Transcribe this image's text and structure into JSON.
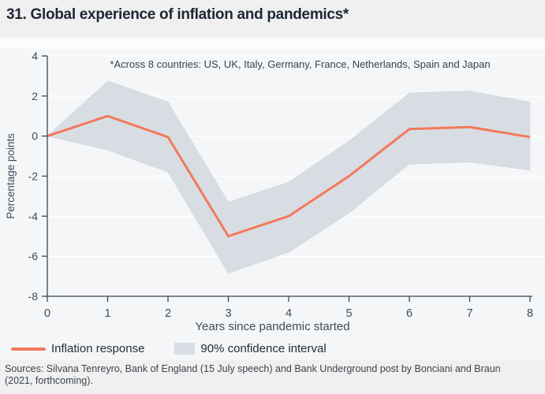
{
  "title": "31. Global experience of inflation and pandemics*",
  "annotation": "*Across 8 countries: US, UK, Italy, Germany, France, Netherlands, Spain and Japan",
  "legend": [
    {
      "label": "Inflation response"
    },
    {
      "label": "90% confidence interval"
    }
  ],
  "sources": "Sources: Silvana Tenreyro, Bank of England (15 July speech) and Bank Underground post by Bonciani and Braun (2021, forthcoming).",
  "colors": {
    "page_bg": "#f0f0f1",
    "panel_bg": "#f4f6f8",
    "gridline": "#ffffff",
    "band": "#d8dde3",
    "line": "#f3795b",
    "spine": "#3b4854",
    "tick_text": "#3f4d5a",
    "title_text": "#1d2733"
  },
  "chart_data": {
    "type": "line",
    "title": "31. Global experience of inflation and pandemics*",
    "x": [
      0,
      1,
      2,
      3,
      4,
      5,
      6,
      7,
      8
    ],
    "series": [
      {
        "name": "Inflation response",
        "role": "line",
        "values": [
          0,
          1.0,
          -0.05,
          -5.0,
          -4.0,
          -2.0,
          0.35,
          0.45,
          -0.05
        ]
      },
      {
        "name": "90% confidence interval upper",
        "role": "band_upper",
        "values": [
          0,
          2.75,
          1.7,
          -3.3,
          -2.3,
          -0.25,
          2.15,
          2.25,
          1.7
        ]
      },
      {
        "name": "90% confidence interval lower",
        "role": "band_lower",
        "values": [
          0,
          -0.7,
          -1.8,
          -6.85,
          -5.8,
          -3.85,
          -1.4,
          -1.3,
          -1.7
        ]
      }
    ],
    "xlabel": "Years since pandemic started",
    "ylabel": "Percentage points",
    "xlim": [
      0,
      8
    ],
    "ylim": [
      -8,
      4
    ],
    "xticks": [
      0,
      1,
      2,
      3,
      4,
      5,
      6,
      7,
      8
    ],
    "yticks": [
      4,
      2,
      0,
      -2,
      -4,
      -6,
      -8
    ],
    "grid": true,
    "legend_position": "bottom"
  }
}
